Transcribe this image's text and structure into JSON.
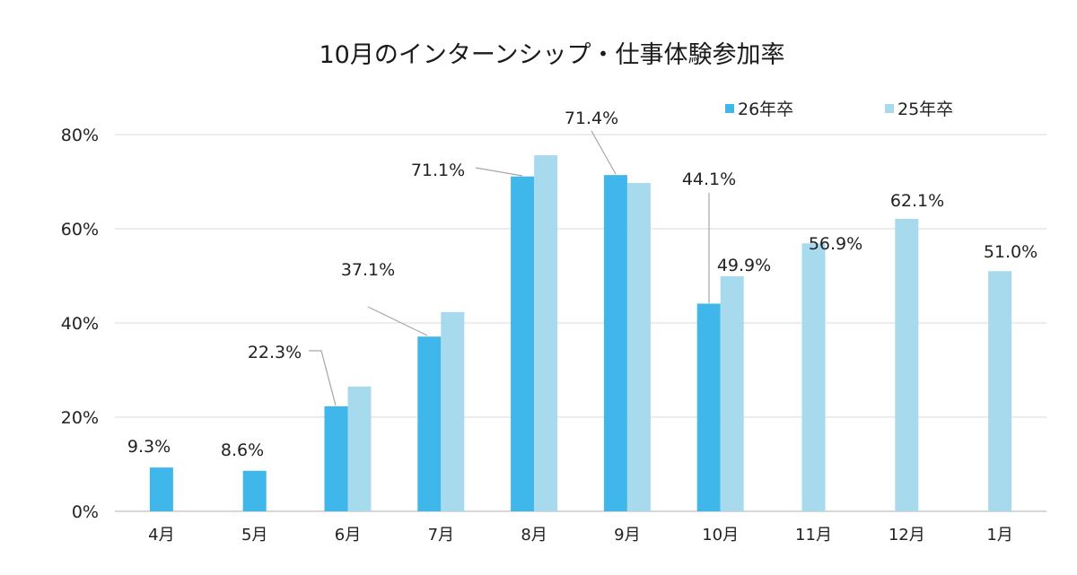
{
  "chart_data": {
    "type": "bar",
    "title": "10月のインターンシップ・仕事体験参加率",
    "categories": [
      "4月",
      "5月",
      "6月",
      "7月",
      "8月",
      "9月",
      "10月",
      "11月",
      "12月",
      "1月"
    ],
    "series": [
      {
        "name": "26年卒",
        "color": "#40b7ea",
        "values": [
          9.3,
          8.6,
          22.3,
          37.1,
          71.1,
          71.4,
          44.1,
          null,
          null,
          null
        ],
        "labels": [
          "9.3%",
          "8.6%",
          "22.3%",
          "37.1%",
          "71.1%",
          "71.4%",
          "44.1%",
          null,
          null,
          null
        ]
      },
      {
        "name": "25年卒",
        "color": "#a8daee",
        "values": [
          null,
          null,
          26.5,
          42.3,
          75.6,
          69.7,
          49.9,
          56.9,
          62.1,
          51.0
        ],
        "labels": [
          null,
          null,
          null,
          null,
          null,
          null,
          "49.9%",
          "56.9%",
          "62.1%",
          "51.0%"
        ]
      }
    ],
    "yticks": [
      "0%",
      "20%",
      "40%",
      "60%",
      "80%"
    ],
    "ylim": [
      0,
      80
    ],
    "grid": true,
    "legend_position": "top-right"
  }
}
